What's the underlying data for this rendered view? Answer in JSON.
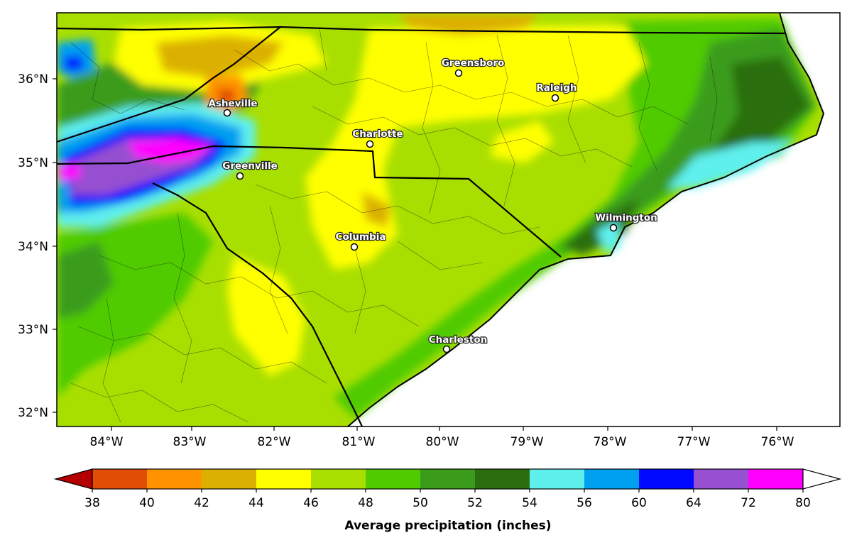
{
  "map": {
    "lat_ticks": [
      "36°N",
      "35°N",
      "34°N",
      "33°N",
      "32°N"
    ],
    "lon_ticks": [
      "84°W",
      "83°W",
      "82°W",
      "81°W",
      "80°W",
      "79°W",
      "78°W",
      "77°W",
      "76°W"
    ],
    "cities": [
      {
        "name": "Greensboro"
      },
      {
        "name": "Raleigh"
      },
      {
        "name": "Asheville"
      },
      {
        "name": "Charlotte"
      },
      {
        "name": "Greenville"
      },
      {
        "name": "Wilmington"
      },
      {
        "name": "Columbia"
      },
      {
        "name": "Charleston"
      }
    ]
  },
  "colorbar": {
    "title": "Average precipitation (inches)",
    "labels": [
      "38",
      "40",
      "42",
      "44",
      "46",
      "48",
      "50",
      "52",
      "54",
      "56",
      "60",
      "64",
      "72",
      "80"
    ],
    "colors": [
      "#e24d06",
      "#ff9400",
      "#dcb000",
      "#ffff00",
      "#a9df00",
      "#50cb00",
      "#3a9c1a",
      "#2a6e10",
      "#5ff0ee",
      "#00a0f0",
      "#0008ff",
      "#9650d0",
      "#ff00ff"
    ],
    "under_color": "#b40000",
    "over_color": "#ffffff"
  }
}
